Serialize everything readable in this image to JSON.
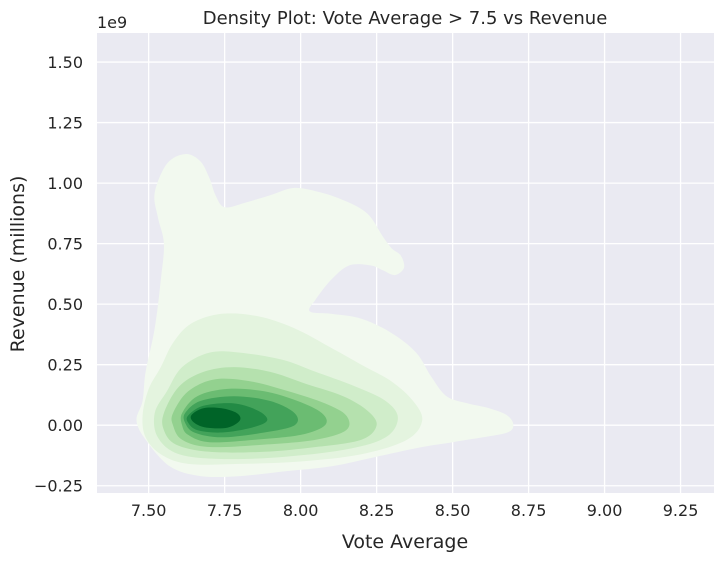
{
  "chart_data": {
    "type": "kde-density",
    "title": "Density Plot: Vote Average > 7.5 vs Revenue",
    "xlabel": "Vote Average",
    "ylabel": "Revenue (millions)",
    "y_offset_label": "1e9",
    "xlim": [
      7.33,
      9.36
    ],
    "ylim": [
      -0.28,
      1.62
    ],
    "x_ticks": [
      7.5,
      7.75,
      8.0,
      8.25,
      8.5,
      8.75,
      9.0,
      9.25
    ],
    "x_tick_labels": [
      "7.50",
      "7.75",
      "8.00",
      "8.25",
      "8.50",
      "8.75",
      "9.00",
      "9.25"
    ],
    "y_ticks": [
      -0.25,
      0.0,
      0.25,
      0.5,
      0.75,
      1.0,
      1.25,
      1.5
    ],
    "y_tick_labels": [
      "−0.25",
      "0.00",
      "0.25",
      "0.50",
      "0.75",
      "1.00",
      "1.25",
      "1.50"
    ],
    "grid": true,
    "colors": {
      "background": "#eaeaf2",
      "grid": "#ffffff",
      "levels": [
        "#f2f9ef",
        "#e4f4df",
        "#d0edca",
        "#b5e1ae",
        "#93d18f",
        "#6bbc72",
        "#43a35a",
        "#238b45",
        "#006428"
      ]
    },
    "contour_levels": [
      [
        [
          7.48,
          0.1
        ],
        [
          7.49,
          0.22
        ],
        [
          7.52,
          0.4
        ],
        [
          7.54,
          0.6
        ],
        [
          7.55,
          0.75
        ],
        [
          7.53,
          0.86
        ],
        [
          7.52,
          0.96
        ],
        [
          7.56,
          1.08
        ],
        [
          7.62,
          1.12
        ],
        [
          7.67,
          1.09
        ],
        [
          7.7,
          1.02
        ],
        [
          7.72,
          0.95
        ],
        [
          7.75,
          0.9
        ],
        [
          7.82,
          0.92
        ],
        [
          7.9,
          0.95
        ],
        [
          7.98,
          0.98
        ],
        [
          8.07,
          0.96
        ],
        [
          8.14,
          0.93
        ],
        [
          8.19,
          0.9
        ],
        [
          8.23,
          0.86
        ],
        [
          8.27,
          0.78
        ],
        [
          8.3,
          0.73
        ],
        [
          8.33,
          0.7
        ],
        [
          8.34,
          0.65
        ],
        [
          8.31,
          0.62
        ],
        [
          8.27,
          0.64
        ],
        [
          8.23,
          0.66
        ],
        [
          8.16,
          0.66
        ],
        [
          8.1,
          0.6
        ],
        [
          8.05,
          0.52
        ],
        [
          8.03,
          0.47
        ],
        [
          8.1,
          0.46
        ],
        [
          8.2,
          0.44
        ],
        [
          8.3,
          0.38
        ],
        [
          8.38,
          0.3
        ],
        [
          8.43,
          0.2
        ],
        [
          8.48,
          0.12
        ],
        [
          8.55,
          0.09
        ],
        [
          8.62,
          0.07
        ],
        [
          8.68,
          0.04
        ],
        [
          8.7,
          0.0
        ],
        [
          8.68,
          -0.03
        ],
        [
          8.6,
          -0.05
        ],
        [
          8.5,
          -0.07
        ],
        [
          8.4,
          -0.09
        ],
        [
          8.25,
          -0.13
        ],
        [
          8.1,
          -0.17
        ],
        [
          7.95,
          -0.19
        ],
        [
          7.8,
          -0.21
        ],
        [
          7.67,
          -0.21
        ],
        [
          7.57,
          -0.17
        ],
        [
          7.49,
          -0.06
        ],
        [
          7.46,
          0.02
        ]
      ],
      [
        [
          7.48,
          0.04
        ],
        [
          7.5,
          0.15
        ],
        [
          7.54,
          0.24
        ],
        [
          7.58,
          0.34
        ],
        [
          7.64,
          0.42
        ],
        [
          7.74,
          0.46
        ],
        [
          7.86,
          0.45
        ],
        [
          7.98,
          0.4
        ],
        [
          8.1,
          0.32
        ],
        [
          8.2,
          0.25
        ],
        [
          8.3,
          0.18
        ],
        [
          8.37,
          0.1
        ],
        [
          8.4,
          0.02
        ],
        [
          8.35,
          -0.06
        ],
        [
          8.2,
          -0.12
        ],
        [
          8.0,
          -0.15
        ],
        [
          7.8,
          -0.16
        ],
        [
          7.63,
          -0.16
        ],
        [
          7.54,
          -0.12
        ],
        [
          7.49,
          -0.05
        ]
      ],
      [
        [
          7.52,
          0.05
        ],
        [
          7.56,
          0.14
        ],
        [
          7.61,
          0.24
        ],
        [
          7.7,
          0.3
        ],
        [
          7.8,
          0.3
        ],
        [
          7.94,
          0.27
        ],
        [
          8.05,
          0.22
        ],
        [
          8.18,
          0.16
        ],
        [
          8.28,
          0.1
        ],
        [
          8.32,
          0.03
        ],
        [
          8.28,
          -0.05
        ],
        [
          8.15,
          -0.1
        ],
        [
          7.95,
          -0.13
        ],
        [
          7.75,
          -0.14
        ],
        [
          7.6,
          -0.12
        ],
        [
          7.53,
          -0.05
        ]
      ],
      [
        [
          7.55,
          0.05
        ],
        [
          7.6,
          0.16
        ],
        [
          7.68,
          0.22
        ],
        [
          7.78,
          0.24
        ],
        [
          7.9,
          0.22
        ],
        [
          8.02,
          0.17
        ],
        [
          8.14,
          0.12
        ],
        [
          8.22,
          0.06
        ],
        [
          8.25,
          0.0
        ],
        [
          8.2,
          -0.06
        ],
        [
          8.05,
          -0.09
        ],
        [
          7.88,
          -0.11
        ],
        [
          7.7,
          -0.11
        ],
        [
          7.59,
          -0.08
        ],
        [
          7.55,
          -0.02
        ]
      ],
      [
        [
          7.58,
          0.05
        ],
        [
          7.63,
          0.14
        ],
        [
          7.72,
          0.19
        ],
        [
          7.84,
          0.18
        ],
        [
          7.96,
          0.14
        ],
        [
          8.08,
          0.09
        ],
        [
          8.15,
          0.04
        ],
        [
          8.15,
          -0.02
        ],
        [
          8.05,
          -0.06
        ],
        [
          7.88,
          -0.08
        ],
        [
          7.7,
          -0.09
        ],
        [
          7.61,
          -0.06
        ],
        [
          7.58,
          0.0
        ]
      ],
      [
        [
          7.61,
          0.05
        ],
        [
          7.66,
          0.12
        ],
        [
          7.76,
          0.15
        ],
        [
          7.88,
          0.14
        ],
        [
          7.99,
          0.1
        ],
        [
          8.07,
          0.05
        ],
        [
          8.08,
          0.0
        ],
        [
          8.0,
          -0.04
        ],
        [
          7.85,
          -0.06
        ],
        [
          7.7,
          -0.07
        ],
        [
          7.63,
          -0.04
        ],
        [
          7.61,
          0.0
        ]
      ],
      [
        [
          7.62,
          0.05
        ],
        [
          7.67,
          0.1
        ],
        [
          7.78,
          0.12
        ],
        [
          7.9,
          0.1
        ],
        [
          7.98,
          0.05
        ],
        [
          7.98,
          0.0
        ],
        [
          7.88,
          -0.03
        ],
        [
          7.74,
          -0.05
        ],
        [
          7.65,
          -0.03
        ],
        [
          7.62,
          0.01
        ]
      ],
      [
        [
          7.63,
          0.04
        ],
        [
          7.68,
          0.08
        ],
        [
          7.78,
          0.09
        ],
        [
          7.86,
          0.06
        ],
        [
          7.89,
          0.02
        ],
        [
          7.84,
          -0.01
        ],
        [
          7.74,
          -0.03
        ],
        [
          7.66,
          -0.02
        ],
        [
          7.63,
          0.01
        ]
      ],
      [
        [
          7.64,
          0.04
        ],
        [
          7.68,
          0.07
        ],
        [
          7.74,
          0.07
        ],
        [
          7.79,
          0.05
        ],
        [
          7.8,
          0.02
        ],
        [
          7.76,
          -0.01
        ],
        [
          7.69,
          -0.01
        ],
        [
          7.65,
          0.01
        ]
      ]
    ]
  }
}
